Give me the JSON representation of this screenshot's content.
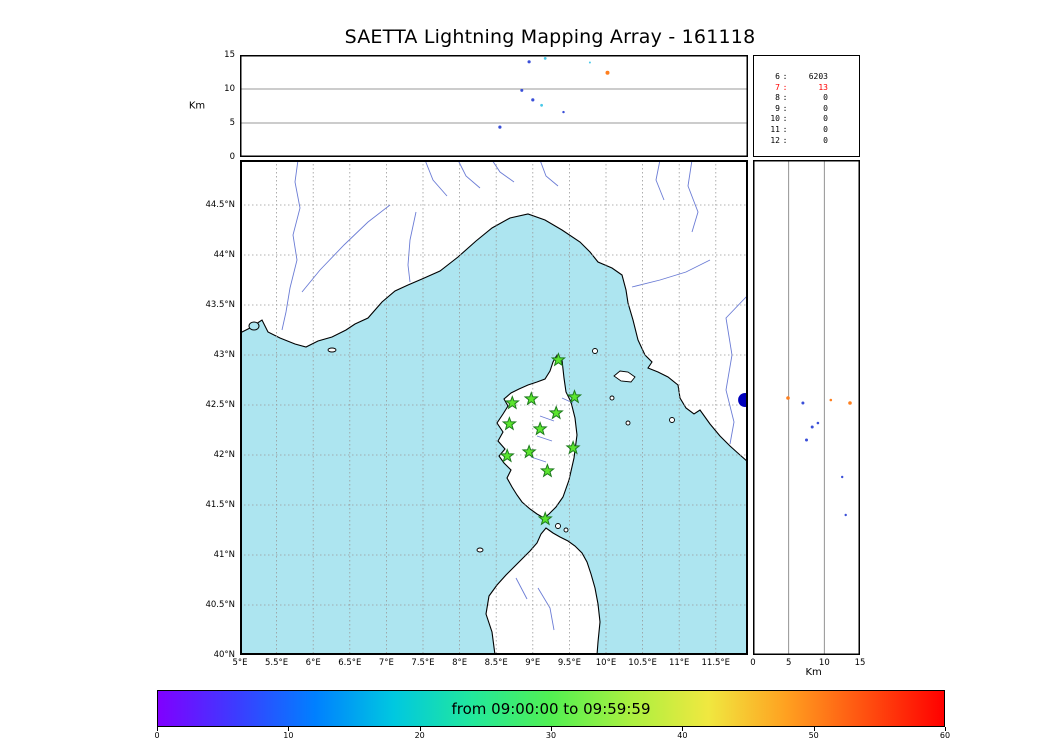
{
  "title": "SAETTA Lightning Mapping Array - 161118",
  "colors": {
    "sea": "#ade5f0",
    "land": "#ffffff",
    "coast": "#000000",
    "river": "#5b6ed0",
    "grid": "#999999",
    "station_fill": "#5be52e",
    "station_edge": "#1d7a1d",
    "stats_highlight": "#ff0000"
  },
  "stats_panel": {
    "rows": [
      {
        "label": "6",
        "value": "6203",
        "highlight": false
      },
      {
        "label": "7",
        "value": "13",
        "highlight": true
      },
      {
        "label": "8",
        "value": "0",
        "highlight": false
      },
      {
        "label": "9",
        "value": "0",
        "highlight": false
      },
      {
        "label": "10",
        "value": "0",
        "highlight": false
      },
      {
        "label": "11",
        "value": "0",
        "highlight": false
      },
      {
        "label": "12",
        "value": "0",
        "highlight": false
      }
    ]
  },
  "chart_data": [
    {
      "id": "alt_lon",
      "type": "scatter",
      "title": "altitude vs longitude cross-section",
      "ylabel": "Km",
      "ylim": [
        0,
        15
      ],
      "yticks": [
        0,
        5,
        10,
        15
      ],
      "xlim": [
        5,
        11.94
      ],
      "points": [
        {
          "x": 8.95,
          "y": 14.0,
          "color": "#3a4fd8",
          "r": 1.6
        },
        {
          "x": 9.17,
          "y": 14.5,
          "color": "#49c8e8",
          "r": 1.4
        },
        {
          "x": 10.02,
          "y": 12.4,
          "color": "#ff7f1e",
          "r": 2.0
        },
        {
          "x": 8.85,
          "y": 9.8,
          "color": "#3a4fd8",
          "r": 1.5
        },
        {
          "x": 9.0,
          "y": 8.4,
          "color": "#3a4fd8",
          "r": 1.6
        },
        {
          "x": 9.12,
          "y": 7.6,
          "color": "#49c8e8",
          "r": 1.4
        },
        {
          "x": 9.42,
          "y": 6.6,
          "color": "#3a4fd8",
          "r": 1.2
        },
        {
          "x": 8.55,
          "y": 4.4,
          "color": "#3a4fd8",
          "r": 1.6
        },
        {
          "x": 9.78,
          "y": 13.9,
          "color": "#49c8e8",
          "r": 1.0
        }
      ]
    },
    {
      "id": "map",
      "type": "scatter",
      "title": "plan view map (Corsica region)",
      "xlim": [
        5,
        11.94
      ],
      "ylim": [
        40,
        44.95
      ],
      "xticks": [
        5,
        5.5,
        6,
        6.5,
        7,
        7.5,
        8,
        8.5,
        9,
        9.5,
        10,
        10.5,
        11,
        11.5
      ],
      "xtick_labels": [
        "5°E",
        "5.5°E",
        "6°E",
        "6.5°E",
        "7°E",
        "7.5°E",
        "8°E",
        "8.5°E",
        "9°E",
        "9.5°E",
        "10°E",
        "10.5°E",
        "11°E",
        "11.5°E"
      ],
      "yticks": [
        40,
        40.5,
        41,
        41.5,
        42,
        42.5,
        43,
        43.5,
        44,
        44.5
      ],
      "ytick_labels": [
        "40°N",
        "40.5°N",
        "41°N",
        "41.5°N",
        "42°N",
        "42.5°N",
        "43°N",
        "43.5°N",
        "44°N",
        "44.5°N"
      ],
      "stations": [
        {
          "lon": 9.35,
          "lat": 42.95
        },
        {
          "lon": 8.72,
          "lat": 42.52
        },
        {
          "lon": 8.98,
          "lat": 42.56
        },
        {
          "lon": 9.32,
          "lat": 42.42
        },
        {
          "lon": 9.57,
          "lat": 42.58
        },
        {
          "lon": 9.1,
          "lat": 42.26
        },
        {
          "lon": 8.68,
          "lat": 42.31
        },
        {
          "lon": 9.55,
          "lat": 42.07
        },
        {
          "lon": 8.65,
          "lat": 41.99
        },
        {
          "lon": 8.95,
          "lat": 42.03
        },
        {
          "lon": 9.2,
          "lat": 41.84
        },
        {
          "lon": 9.17,
          "lat": 41.36
        }
      ],
      "points": [
        {
          "x": 11.9,
          "y": 42.55,
          "color": "#0000bb",
          "r": 7
        }
      ]
    },
    {
      "id": "alt_lat",
      "type": "scatter",
      "title": "altitude vs latitude cross-section",
      "xlabel": "Km",
      "xlim": [
        0,
        15
      ],
      "xticks": [
        0,
        5,
        10,
        15
      ],
      "ylim": [
        40,
        44.95
      ],
      "points": [
        {
          "x": 4.9,
          "y": 42.57,
          "color": "#ff7f1e",
          "r": 1.8
        },
        {
          "x": 7.0,
          "y": 42.52,
          "color": "#3a4fd8",
          "r": 1.5
        },
        {
          "x": 10.9,
          "y": 42.55,
          "color": "#ff7f1e",
          "r": 1.3
        },
        {
          "x": 13.6,
          "y": 42.52,
          "color": "#ff7f1e",
          "r": 1.8
        },
        {
          "x": 8.3,
          "y": 42.28,
          "color": "#3a4fd8",
          "r": 1.5
        },
        {
          "x": 7.5,
          "y": 42.15,
          "color": "#3a4fd8",
          "r": 1.5
        },
        {
          "x": 9.1,
          "y": 42.32,
          "color": "#3a4fd8",
          "r": 1.3
        },
        {
          "x": 12.5,
          "y": 41.78,
          "color": "#3a4fd8",
          "r": 1.2
        },
        {
          "x": 13.0,
          "y": 41.4,
          "color": "#3a4fd8",
          "r": 1.2
        }
      ]
    },
    {
      "id": "colorbar",
      "type": "colorbar",
      "label": "from 09:00:00 to 09:59:59",
      "xlim": [
        0,
        60
      ],
      "ticks": [
        0,
        10,
        20,
        30,
        40,
        50,
        60
      ],
      "colors": [
        "#8000ff",
        "#3c3cff",
        "#0080ff",
        "#00c8e0",
        "#22e89c",
        "#52f052",
        "#aaf040",
        "#f0e840",
        "#ffa020",
        "#ff5010",
        "#ff0000"
      ]
    }
  ]
}
